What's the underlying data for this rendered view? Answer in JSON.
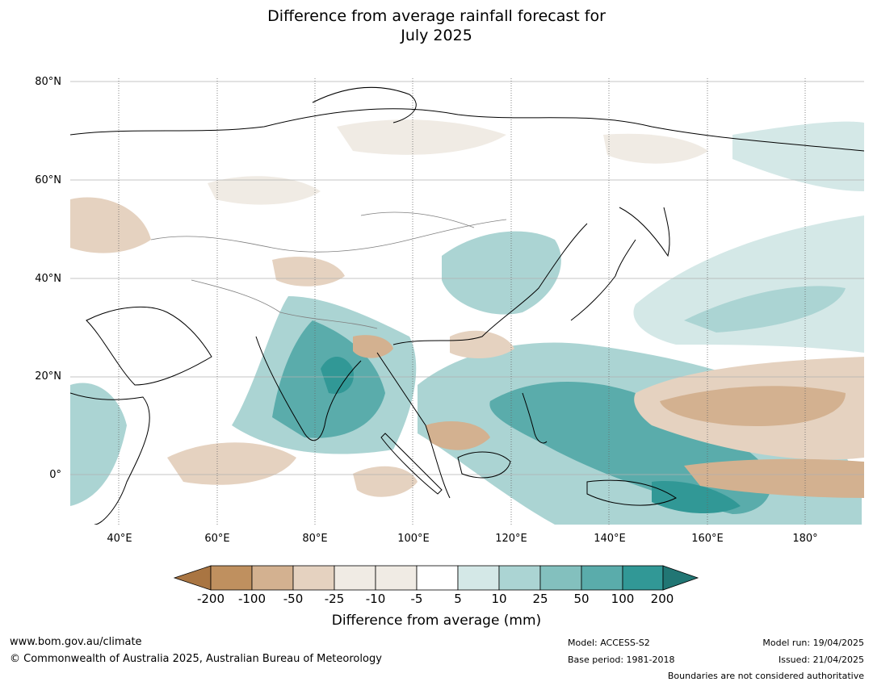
{
  "title": {
    "line1": "Difference from average rainfall forecast for",
    "line2": "July 2025"
  },
  "map": {
    "lat_labels": [
      "80°N",
      "60°N",
      "40°N",
      "20°N",
      "0°"
    ],
    "lon_labels": [
      "40°E",
      "60°E",
      "80°E",
      "100°E",
      "120°E",
      "140°E",
      "160°E",
      "180°"
    ],
    "lon_range": [
      30,
      192
    ],
    "lat_range": [
      -10,
      81
    ],
    "background": "#ffffff",
    "coast_color": "#000000",
    "border_color": "#808080"
  },
  "colorbar": {
    "tick_labels": [
      "-200",
      "-100",
      "-50",
      "-25",
      "-10",
      "-5",
      "5",
      "10",
      "25",
      "50",
      "100",
      "200"
    ],
    "colors": [
      "#a97542",
      "#bf905f",
      "#d3b190",
      "#e5d2c0",
      "#f0ebe4",
      "#ffffff",
      "#d4e8e7",
      "#abd4d3",
      "#83c0be",
      "#5aacab",
      "#319896",
      "#217674"
    ],
    "title": "Difference from average (mm)"
  },
  "footer": {
    "website": "www.bom.gov.au/climate",
    "copyright": "© Commonwealth of Australia 2025, Australian Bureau of Meteorology",
    "model": "Model: ACCESS-S2",
    "base_period": "Base period: 1981-2018",
    "model_run": "Model run: 19/04/2025",
    "issued": "Issued: 21/04/2025",
    "disclaimer": "Boundaries are not considered authoritative"
  }
}
